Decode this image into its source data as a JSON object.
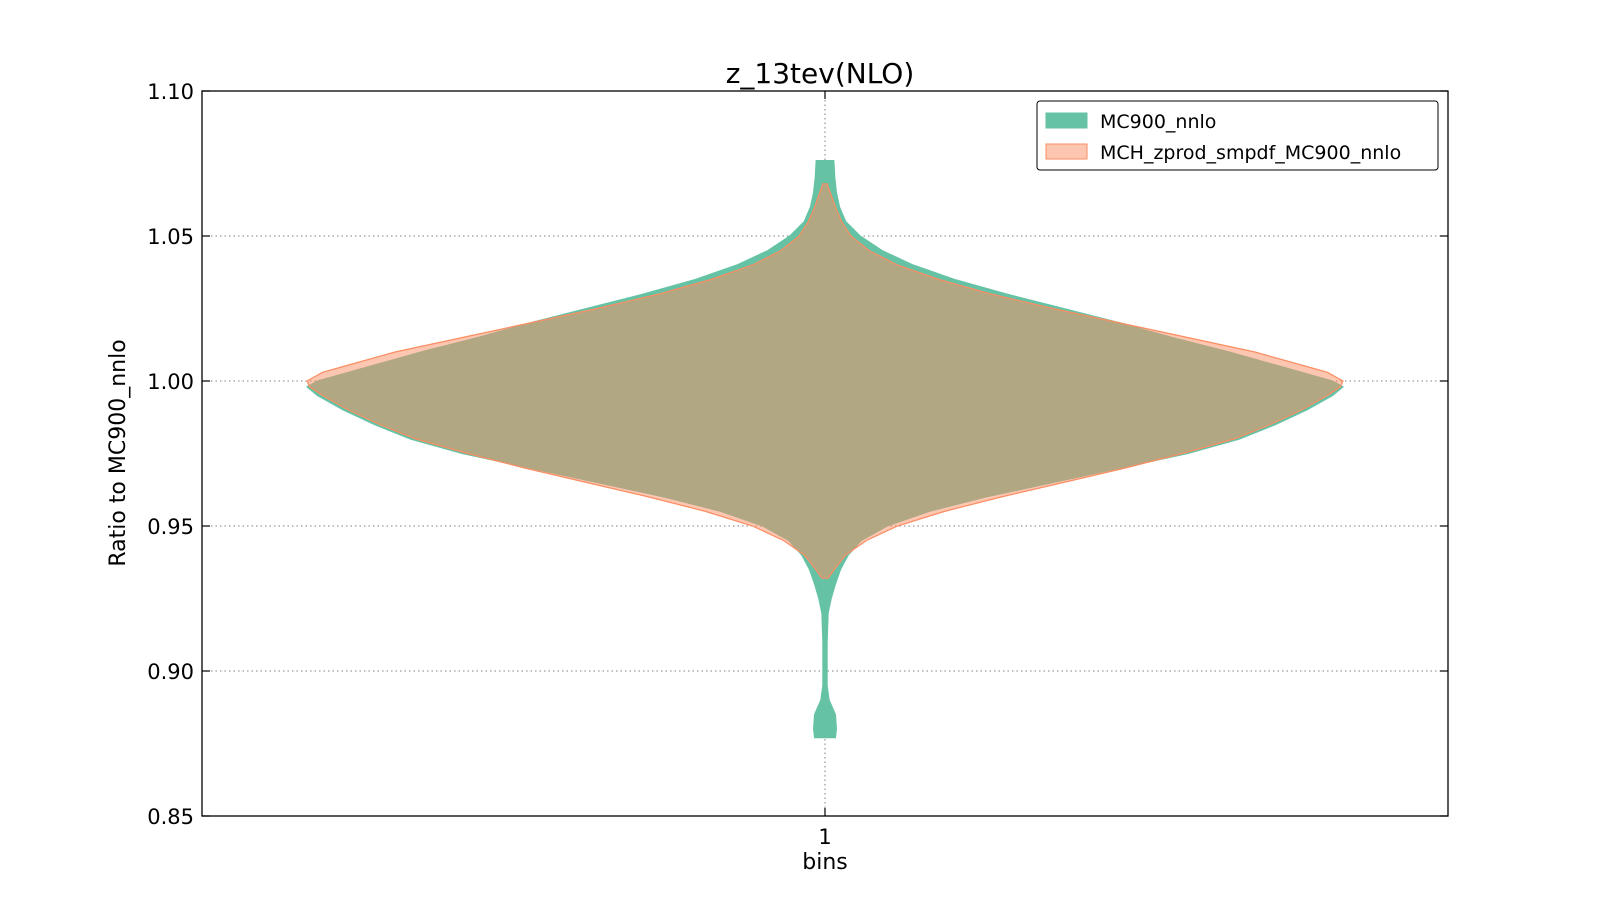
{
  "chart_data": {
    "type": "violin",
    "title": "z_13tev(NLO)",
    "xlabel": "bins",
    "ylabel": "Ratio to MC900_nnlo",
    "categories": [
      "1"
    ],
    "ylim": [
      0.85,
      1.1
    ],
    "yticks": [
      "0.85",
      "0.90",
      "0.95",
      "1.00",
      "1.05",
      "1.10"
    ],
    "grid": true,
    "legend_position": "top-right",
    "series": [
      {
        "name": "MC900_nnlo",
        "color": "#66c2a5",
        "edge_color": "#66c2a5",
        "alpha": 1.0,
        "range": [
          0.877,
          1.076
        ],
        "density_profile": [
          [
            0.877,
            0.02
          ],
          [
            0.88,
            0.022
          ],
          [
            0.885,
            0.02
          ],
          [
            0.89,
            0.008
          ],
          [
            0.895,
            0.004
          ],
          [
            0.9,
            0.004
          ],
          [
            0.91,
            0.004
          ],
          [
            0.92,
            0.006
          ],
          [
            0.925,
            0.012
          ],
          [
            0.93,
            0.02
          ],
          [
            0.935,
            0.03
          ],
          [
            0.94,
            0.045
          ],
          [
            0.945,
            0.07
          ],
          [
            0.95,
            0.12
          ],
          [
            0.955,
            0.2
          ],
          [
            0.96,
            0.31
          ],
          [
            0.965,
            0.44
          ],
          [
            0.97,
            0.57
          ],
          [
            0.975,
            0.7
          ],
          [
            0.98,
            0.8
          ],
          [
            0.985,
            0.87
          ],
          [
            0.99,
            0.93
          ],
          [
            0.995,
            0.98
          ],
          [
            0.998,
            1.0
          ],
          [
            1.0,
            0.98
          ],
          [
            1.005,
            0.88
          ],
          [
            1.01,
            0.78
          ],
          [
            1.015,
            0.67
          ],
          [
            1.02,
            0.57
          ],
          [
            1.025,
            0.46
          ],
          [
            1.03,
            0.35
          ],
          [
            1.035,
            0.25
          ],
          [
            1.04,
            0.17
          ],
          [
            1.045,
            0.11
          ],
          [
            1.05,
            0.068
          ],
          [
            1.055,
            0.04
          ],
          [
            1.06,
            0.028
          ],
          [
            1.065,
            0.022
          ],
          [
            1.07,
            0.019
          ],
          [
            1.076,
            0.017
          ]
        ]
      },
      {
        "name": "MCH_zprod_smpdf_MC900_nnlo",
        "color": "#fc8d62",
        "edge_color": "#fc8d62",
        "alpha": 0.5,
        "range": [
          0.932,
          1.068
        ],
        "density_profile": [
          [
            0.932,
            0.006
          ],
          [
            0.935,
            0.018
          ],
          [
            0.94,
            0.04
          ],
          [
            0.945,
            0.08
          ],
          [
            0.95,
            0.14
          ],
          [
            0.955,
            0.23
          ],
          [
            0.96,
            0.34
          ],
          [
            0.965,
            0.46
          ],
          [
            0.97,
            0.58
          ],
          [
            0.975,
            0.69
          ],
          [
            0.98,
            0.79
          ],
          [
            0.985,
            0.86
          ],
          [
            0.99,
            0.92
          ],
          [
            0.995,
            0.97
          ],
          [
            0.998,
            0.995
          ],
          [
            1.0,
            1.0
          ],
          [
            1.003,
            0.97
          ],
          [
            1.005,
            0.93
          ],
          [
            1.01,
            0.83
          ],
          [
            1.015,
            0.7
          ],
          [
            1.02,
            0.57
          ],
          [
            1.025,
            0.44
          ],
          [
            1.03,
            0.32
          ],
          [
            1.035,
            0.22
          ],
          [
            1.04,
            0.14
          ],
          [
            1.045,
            0.085
          ],
          [
            1.05,
            0.05
          ],
          [
            1.055,
            0.032
          ],
          [
            1.06,
            0.02
          ],
          [
            1.065,
            0.01
          ],
          [
            1.068,
            0.004
          ]
        ]
      }
    ]
  }
}
